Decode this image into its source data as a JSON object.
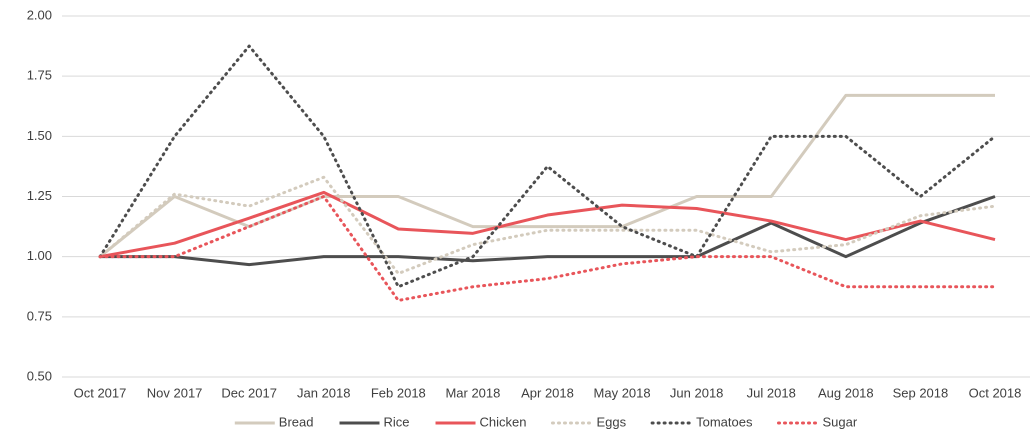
{
  "chart_data": {
    "type": "line",
    "categories": [
      "Oct 2017",
      "Nov 2017",
      "Dec 2017",
      "Jan 2018",
      "Feb 2018",
      "Mar 2018",
      "Apr 2018",
      "May 2018",
      "Jun 2018",
      "Jul 2018",
      "Aug 2018",
      "Sep 2018",
      "Oct 2018"
    ],
    "ylim": [
      0.5,
      2.0
    ],
    "yticks": [
      {
        "value": 0.5,
        "label": "0.50"
      },
      {
        "value": 0.75,
        "label": "0.75"
      },
      {
        "value": 1.0,
        "label": "1.00"
      },
      {
        "value": 1.25,
        "label": "1.25"
      },
      {
        "value": 1.5,
        "label": "1.50"
      },
      {
        "value": 1.75,
        "label": "1.75"
      },
      {
        "value": 2.0,
        "label": "2.00"
      }
    ],
    "grid": true,
    "legend": "bottom",
    "series": [
      {
        "name": "Bread",
        "color": "#d3cbbd",
        "line_style": "solid",
        "values": [
          1.0,
          1.25,
          1.125,
          1.25,
          1.25,
          1.125,
          1.125,
          1.125,
          1.25,
          1.25,
          1.67,
          1.67,
          1.67
        ]
      },
      {
        "name": "Rice",
        "color": "#4d4d4d",
        "line_style": "solid",
        "values": [
          1.0,
          1.0,
          0.967,
          1.0,
          1.0,
          0.983,
          1.0,
          1.0,
          1.0,
          1.14,
          1.0,
          1.14,
          1.25
        ]
      },
      {
        "name": "Chicken",
        "color": "#e8555a",
        "line_style": "solid",
        "values": [
          1.0,
          1.056,
          1.16,
          1.267,
          1.115,
          1.097,
          1.173,
          1.214,
          1.2,
          1.148,
          1.071,
          1.148,
          1.071
        ]
      },
      {
        "name": "Eggs",
        "color": "#d3cbbd",
        "line_style": "dotted",
        "values": [
          1.0,
          1.26,
          1.21,
          1.33,
          0.93,
          1.05,
          1.11,
          1.11,
          1.11,
          1.02,
          1.05,
          1.17,
          1.21
        ]
      },
      {
        "name": "Tomatoes",
        "color": "#4d4d4d",
        "line_style": "dotted",
        "values": [
          1.0,
          1.5,
          1.875,
          1.5,
          0.875,
          1.0,
          1.375,
          1.125,
          1.0,
          1.5,
          1.5,
          1.25,
          1.5
        ]
      },
      {
        "name": "Sugar",
        "color": "#e8555a",
        "line_style": "dotted",
        "values": [
          1.0,
          1.0,
          1.125,
          1.25,
          0.818,
          0.875,
          0.909,
          0.97,
          1.0,
          1.0,
          0.875,
          0.875,
          0.875
        ]
      }
    ]
  }
}
